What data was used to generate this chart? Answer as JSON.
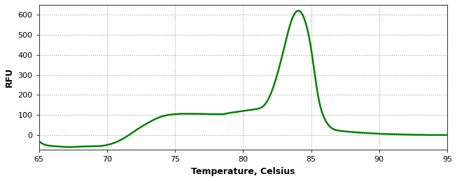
{
  "title": "",
  "xlabel": "Temperature, Celsius",
  "ylabel": "RFU",
  "xlim": [
    65,
    95
  ],
  "ylim": [
    -75,
    650
  ],
  "xticks": [
    65,
    70,
    75,
    80,
    85,
    90,
    95
  ],
  "yticks": [
    0,
    100,
    200,
    300,
    400,
    500,
    600
  ],
  "line_color": "#008000",
  "line_width": 1.8,
  "background_color": "#ffffff",
  "grid_color": "#a0a0a0",
  "curve_points": {
    "x": [
      65.0,
      65.5,
      66.0,
      66.5,
      67.0,
      67.5,
      68.0,
      68.5,
      69.0,
      69.5,
      70.0,
      70.5,
      71.0,
      71.5,
      72.0,
      72.5,
      73.0,
      73.5,
      74.0,
      74.5,
      75.0,
      75.5,
      76.0,
      76.5,
      77.0,
      77.5,
      78.0,
      78.5,
      79.0,
      79.5,
      80.0,
      80.5,
      81.0,
      81.5,
      82.0,
      82.5,
      83.0,
      83.5,
      84.0,
      84.5,
      85.0,
      85.5,
      86.0,
      86.5,
      87.0,
      87.5,
      88.0,
      88.5,
      89.0,
      89.5,
      90.0,
      90.5,
      91.0,
      91.5,
      92.0,
      92.5,
      93.0,
      93.5,
      94.0,
      94.5,
      95.0
    ],
    "y": [
      -30,
      -50,
      -55,
      -58,
      -60,
      -60,
      -58,
      -57,
      -56,
      -55,
      -50,
      -40,
      -25,
      -5,
      18,
      40,
      60,
      78,
      92,
      100,
      104,
      106,
      106,
      106,
      105,
      104,
      104,
      104,
      110,
      115,
      120,
      125,
      130,
      145,
      200,
      300,
      430,
      560,
      620,
      580,
      430,
      200,
      80,
      35,
      22,
      18,
      15,
      12,
      10,
      8,
      6,
      5,
      4,
      3,
      2,
      1,
      1,
      0,
      0,
      0,
      0
    ]
  }
}
